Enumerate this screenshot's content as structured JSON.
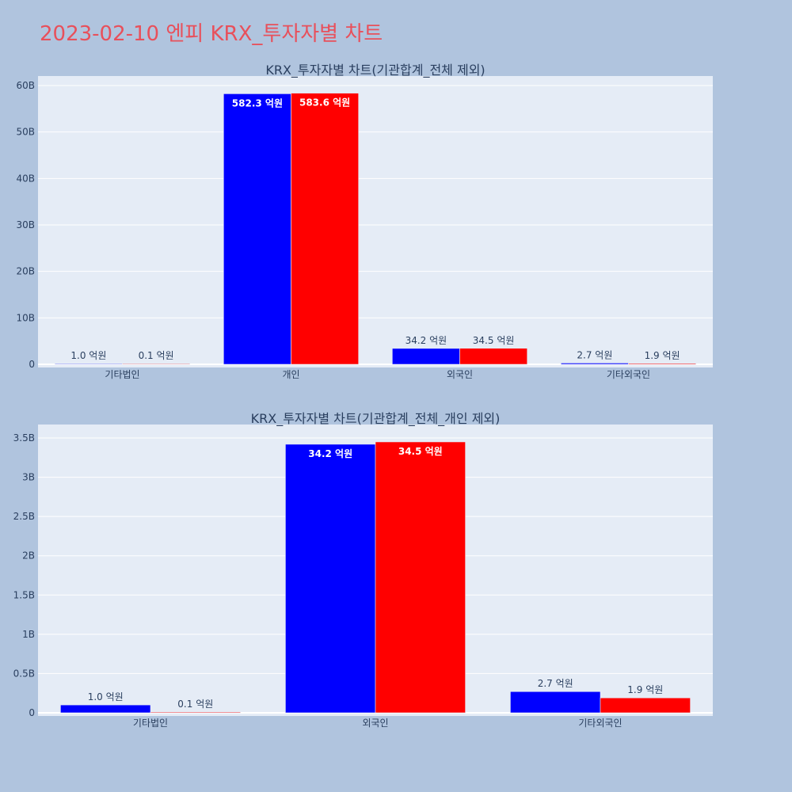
{
  "title": "2023-02-10 엔피 KRX_투자자별 차트",
  "colors": {
    "series_a": "#0000ff",
    "series_b": "#ff0000",
    "plot_bg": "#e5ecf6",
    "page_bg": "#b0c4de",
    "title": "#e8505b"
  },
  "chart_data": [
    {
      "type": "bar",
      "title": "KRX_투자자별 차트(기관합계_전체 제외)",
      "categories": [
        "기타법인",
        "개인",
        "외국인",
        "기타외국인"
      ],
      "series": [
        {
          "values": [
            100000000,
            58230000000,
            3420000000,
            270000000
          ],
          "labels": [
            "1.0 억원",
            "582.3 억원",
            "34.2 억원",
            "2.7 억원"
          ]
        },
        {
          "values": [
            10000000,
            58360000000,
            3450000000,
            190000000
          ],
          "labels": [
            "0.1 억원",
            "583.6 억원",
            "34.5 억원",
            "1.9 억원"
          ]
        }
      ],
      "ylim": [
        0,
        61000000000
      ],
      "yticks": [
        {
          "value": 0,
          "label": "0"
        },
        {
          "value": 10000000000,
          "label": "10B"
        },
        {
          "value": 20000000000,
          "label": "20B"
        },
        {
          "value": 30000000000,
          "label": "30B"
        },
        {
          "value": 40000000000,
          "label": "40B"
        },
        {
          "value": 50000000000,
          "label": "50B"
        },
        {
          "value": 60000000000,
          "label": "60B"
        }
      ],
      "grid": true,
      "barmode": "group"
    },
    {
      "type": "bar",
      "title": "KRX_투자자별 차트(기관합계_전체_개인 제외)",
      "categories": [
        "기타법인",
        "외국인",
        "기타외국인"
      ],
      "series": [
        {
          "values": [
            100000000,
            3420000000,
            270000000
          ],
          "labels": [
            "1.0 억원",
            "34.2 억원",
            "2.7 억원"
          ]
        },
        {
          "values": [
            10000000,
            3450000000,
            190000000
          ],
          "labels": [
            "0.1 억원",
            "34.5 억원",
            "1.9 억원"
          ]
        }
      ],
      "ylim": [
        0,
        3600000000
      ],
      "yticks": [
        {
          "value": 0,
          "label": "0"
        },
        {
          "value": 500000000,
          "label": "0.5B"
        },
        {
          "value": 1000000000,
          "label": "1B"
        },
        {
          "value": 1500000000,
          "label": "1.5B"
        },
        {
          "value": 2000000000,
          "label": "2B"
        },
        {
          "value": 2500000000,
          "label": "2.5B"
        },
        {
          "value": 3000000000,
          "label": "3B"
        },
        {
          "value": 3500000000,
          "label": "3.5B"
        }
      ],
      "grid": true,
      "barmode": "group"
    }
  ]
}
